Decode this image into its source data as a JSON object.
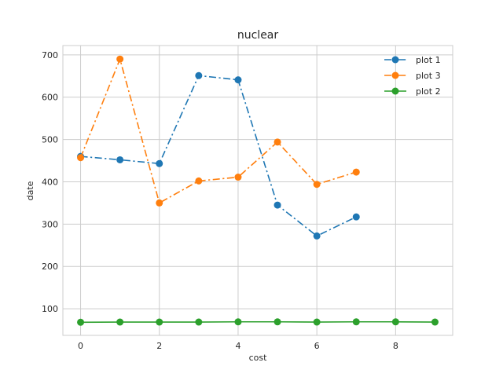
{
  "chart_data": {
    "type": "line",
    "title": "nuclear",
    "xlabel": "cost",
    "ylabel": "date",
    "xlim": [
      -0.45,
      9.45
    ],
    "ylim": [
      37,
      722
    ],
    "xticks": [
      0,
      2,
      4,
      6,
      8
    ],
    "yticks": [
      100,
      200,
      300,
      400,
      500,
      600,
      700
    ],
    "grid": true,
    "legend_position": "top-right",
    "series": [
      {
        "name": "plot 1",
        "color": "#1f77b4",
        "linestyle": "dashdot",
        "marker": "circle",
        "x": [
          0,
          1,
          2,
          3,
          4,
          5,
          6,
          7
        ],
        "values": [
          460,
          452,
          443,
          651,
          641,
          345,
          272,
          317
        ]
      },
      {
        "name": "plot 3",
        "color": "#ff7f0e",
        "linestyle": "dashdot",
        "marker": "circle",
        "x": [
          0,
          1,
          2,
          3,
          4,
          5,
          6,
          7
        ],
        "values": [
          457,
          690,
          350,
          402,
          411,
          494,
          394,
          423
        ]
      },
      {
        "name": "plot 2",
        "color": "#2ca02c",
        "linestyle": "solid",
        "marker": "circle",
        "x": [
          0,
          1,
          2,
          3,
          4,
          5,
          6,
          7,
          8,
          9
        ],
        "values": [
          68,
          68.5,
          68.5,
          68.5,
          69,
          69,
          68.5,
          69,
          69,
          68.5
        ]
      }
    ]
  }
}
